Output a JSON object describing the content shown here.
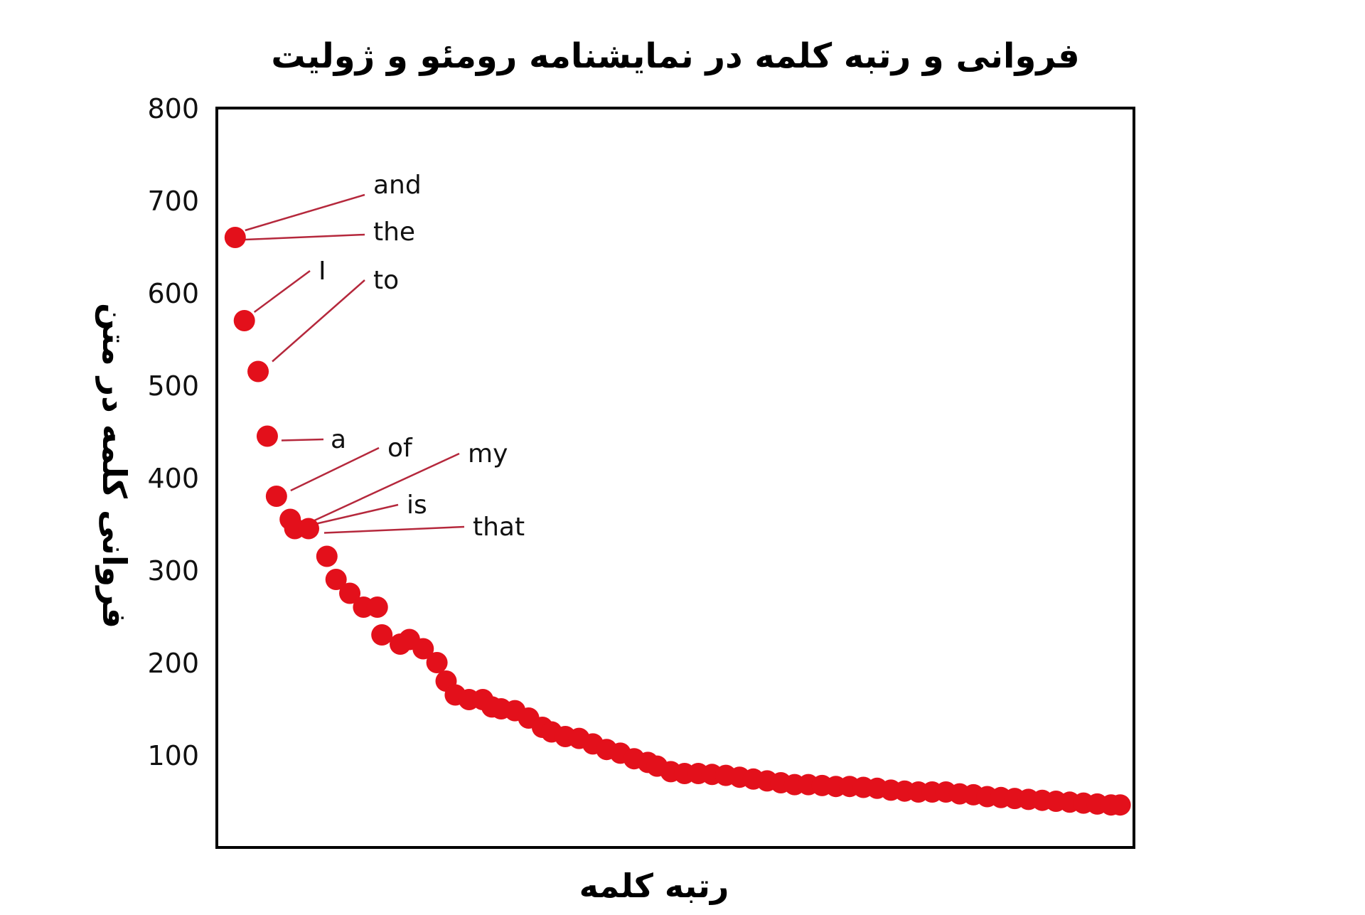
{
  "chart_data": {
    "type": "scatter",
    "title": "فروانی و رتبه کلمه در نمایشنامه رومئو و ژولیت",
    "xlabel": "رتبه کلمه",
    "ylabel": "فروانی کلمه در متن",
    "ylim": [
      0,
      800
    ],
    "xlim": [
      0,
      100
    ],
    "yticks": [
      100,
      200,
      300,
      400,
      500,
      600,
      700,
      800
    ],
    "grid": false,
    "legend": "none",
    "marker_color": "#e3101b",
    "leader_color": "#b5283c",
    "series": [
      {
        "x": [
          2,
          3,
          4.5,
          5.5,
          6.5,
          8,
          8.5,
          10,
          12,
          13,
          14.5,
          16,
          17.5,
          18,
          20,
          21,
          22.5,
          24,
          25,
          26,
          27.5,
          29,
          30,
          31,
          32.5,
          34,
          35.5,
          36.5,
          38,
          39.5,
          41,
          42.5,
          44,
          45.5,
          47,
          48,
          49.5,
          51,
          52.5,
          54,
          55.5,
          57,
          58.5,
          60,
          61.5,
          63,
          64.5,
          66,
          67.5,
          69,
          70.5,
          72,
          73.5,
          75,
          76.5,
          78,
          79.5,
          81,
          82.5,
          84,
          85.5,
          87,
          88.5,
          90,
          91.5,
          93,
          94.5,
          96,
          97.5,
          98.5
        ],
        "y": [
          660,
          570,
          515,
          445,
          380,
          355,
          345,
          345,
          315,
          290,
          275,
          260,
          260,
          230,
          220,
          225,
          215,
          200,
          180,
          165,
          160,
          160,
          152,
          150,
          148,
          140,
          130,
          125,
          120,
          118,
          112,
          106,
          102,
          96,
          92,
          88,
          82,
          80,
          80,
          79,
          78,
          76,
          74,
          72,
          70,
          68,
          68,
          67,
          66,
          66,
          65,
          64,
          62,
          61,
          60,
          60,
          60,
          58,
          57,
          55,
          54,
          53,
          52,
          51,
          50,
          49,
          48,
          47,
          46,
          46
        ]
      }
    ],
    "annotations": [
      {
        "text": "and",
        "x": 2,
        "y": 660
      },
      {
        "text": "the",
        "x": 2,
        "y": 660
      },
      {
        "text": "I",
        "x": 3,
        "y": 570
      },
      {
        "text": "to",
        "x": 4.5,
        "y": 515
      },
      {
        "text": "a",
        "x": 5.5,
        "y": 445
      },
      {
        "text": "of",
        "x": 6.5,
        "y": 380
      },
      {
        "text": "my",
        "x": 8,
        "y": 355
      },
      {
        "text": "is",
        "x": 8.5,
        "y": 345
      },
      {
        "text": "that",
        "x": 10,
        "y": 345
      }
    ]
  }
}
